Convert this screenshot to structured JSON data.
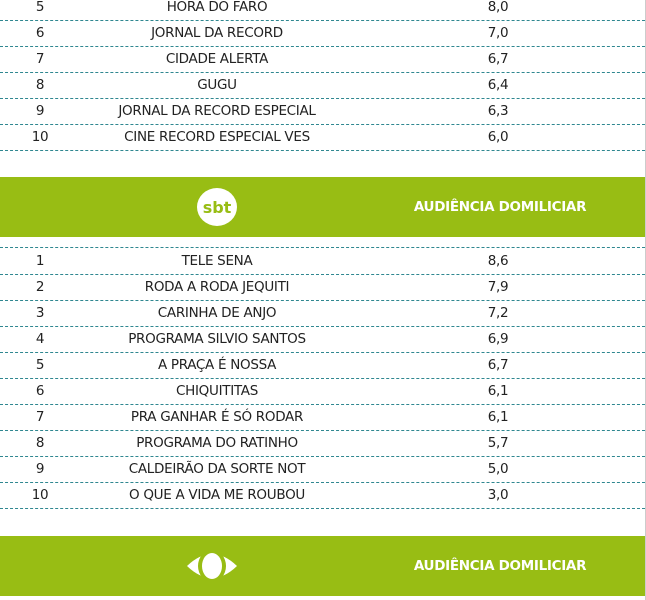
{
  "colors": {
    "accent": "#98bd14",
    "divider": "#2f8790"
  },
  "record_rows": [
    {
      "rank": "5",
      "program": "HORA DO FARO",
      "value": "8,0"
    },
    {
      "rank": "6",
      "program": "JORNAL DA RECORD",
      "value": "7,0"
    },
    {
      "rank": "7",
      "program": "CIDADE ALERTA",
      "value": "6,7"
    },
    {
      "rank": "8",
      "program": "GUGU",
      "value": "6,4"
    },
    {
      "rank": "9",
      "program": "JORNAL DA RECORD ESPECIAL",
      "value": "6,3"
    },
    {
      "rank": "10",
      "program": "CINE RECORD ESPECIAL VES",
      "value": "6,0"
    }
  ],
  "sbt": {
    "logo": "sbt",
    "header": "AUDIÊNCIA DOMILICIAR",
    "rows": [
      {
        "rank": "1",
        "program": "TELE SENA",
        "value": "8,6"
      },
      {
        "rank": "2",
        "program": "RODA A RODA JEQUITI",
        "value": "7,9"
      },
      {
        "rank": "3",
        "program": "CARINHA DE ANJO",
        "value": "7,2"
      },
      {
        "rank": "4",
        "program": "PROGRAMA SILVIO SANTOS",
        "value": "6,9"
      },
      {
        "rank": "5",
        "program": "A PRAÇA É NOSSA",
        "value": "6,7"
      },
      {
        "rank": "6",
        "program": "CHIQUITITAS",
        "value": "6,1"
      },
      {
        "rank": "7",
        "program": "PRA GANHAR É SÓ RODAR",
        "value": "6,1"
      },
      {
        "rank": "8",
        "program": "PROGRAMA DO RATINHO",
        "value": "5,7"
      },
      {
        "rank": "9",
        "program": "CALDEIRÃO DA SORTE NOT",
        "value": "5,0"
      },
      {
        "rank": "10",
        "program": "O QUE A VIDA ME ROUBOU",
        "value": "3,0"
      }
    ]
  },
  "band": {
    "logo": "band-eye-icon",
    "header": "AUDIÊNCIA DOMILICIAR"
  }
}
